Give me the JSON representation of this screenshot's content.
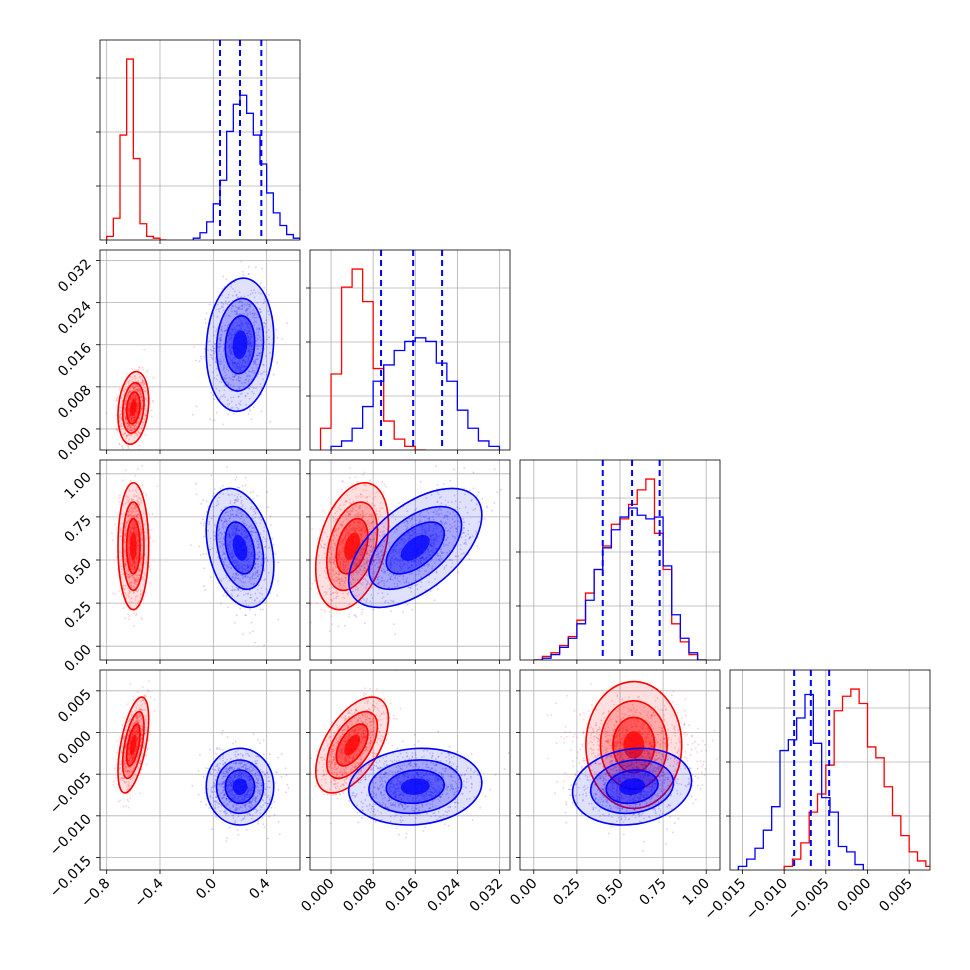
{
  "chart_data": {
    "type": "corner",
    "title": "",
    "parameters": [
      {
        "range": [
          -0.85,
          0.65
        ],
        "ticks": [
          -0.8,
          -0.4,
          0.0,
          0.4
        ],
        "tick_labels": [
          "−0.8",
          "−0.4",
          "0.0",
          "0.4"
        ],
        "label": ""
      },
      {
        "range": [
          -0.004,
          0.034
        ],
        "ticks": [
          0.0,
          0.008,
          0.016,
          0.024,
          0.032
        ],
        "tick_labels": [
          "0.000",
          "0.008",
          "0.016",
          "0.024",
          "0.032"
        ],
        "label": ""
      },
      {
        "range": [
          -0.08,
          1.08
        ],
        "ticks": [
          0.0,
          0.25,
          0.5,
          0.75,
          1.0
        ],
        "tick_labels": [
          "0.00",
          "0.25",
          "0.50",
          "0.75",
          "1.00"
        ],
        "label": ""
      },
      {
        "range": [
          -0.0165,
          0.0075
        ],
        "ticks": [
          -0.015,
          -0.01,
          -0.005,
          0.0,
          0.005
        ],
        "tick_labels": [
          "−0.015",
          "−0.010",
          "−0.005",
          "0.000",
          "0.005"
        ],
        "label": ""
      }
    ],
    "grid": true,
    "series": [
      {
        "color": "#ff0000",
        "means": [
          -0.6,
          0.004,
          0.58,
          -0.0015
        ],
        "sigmas": [
          0.05,
          0.003,
          0.16,
          0.0025
        ],
        "correlations": [
          [
            0,
            1,
            0.2
          ],
          [
            0,
            2,
            0.0
          ],
          [
            0,
            3,
            0.55
          ],
          [
            1,
            2,
            0.35
          ],
          [
            1,
            3,
            0.55
          ],
          [
            2,
            3,
            0.0
          ]
        ],
        "histograms": [
          {
            "edges": [
              -0.8,
              -0.75,
              -0.7,
              -0.65,
              -0.6,
              -0.55,
              -0.5,
              -0.45,
              -0.4,
              -0.35
            ],
            "counts": [
              0.02,
              0.12,
              0.58,
              1.0,
              0.45,
              0.09,
              0.02,
              0.01,
              0.0
            ]
          },
          {
            "edges": [
              -0.002,
              0.0,
              0.002,
              0.004,
              0.006,
              0.008,
              0.01,
              0.012,
              0.014,
              0.016,
              0.018
            ],
            "counts": [
              0.12,
              0.42,
              0.9,
              1.0,
              0.82,
              0.45,
              0.16,
              0.06,
              0.02,
              0.0
            ]
          },
          {
            "edges": [
              0.0,
              0.05,
              0.1,
              0.15,
              0.2,
              0.25,
              0.3,
              0.35,
              0.4,
              0.45,
              0.5,
              0.55,
              0.6,
              0.65,
              0.7,
              0.75,
              0.8,
              0.85,
              0.9,
              0.95,
              1.0
            ],
            "counts": [
              0.0,
              0.02,
              0.04,
              0.08,
              0.13,
              0.22,
              0.37,
              0.5,
              0.63,
              0.75,
              0.78,
              0.86,
              0.94,
              1.0,
              0.7,
              0.5,
              0.2,
              0.1,
              0.03,
              0.0
            ]
          },
          {
            "edges": [
              -0.01,
              -0.009,
              -0.008,
              -0.007,
              -0.006,
              -0.005,
              -0.004,
              -0.003,
              -0.002,
              -0.001,
              0.0,
              0.001,
              0.002,
              0.003,
              0.004,
              0.005,
              0.006,
              0.007,
              0.008
            ],
            "counts": [
              0.02,
              0.06,
              0.15,
              0.32,
              0.42,
              0.58,
              0.88,
              0.96,
              1.0,
              0.92,
              0.68,
              0.62,
              0.46,
              0.3,
              0.19,
              0.1,
              0.05,
              0.02
            ]
          }
        ]
      },
      {
        "color": "#0000ff",
        "means": [
          0.2,
          0.016,
          0.57,
          -0.0065
        ],
        "sigmas": [
          0.11,
          0.0055,
          0.15,
          0.002
        ],
        "correlations": [
          [
            0,
            1,
            0.1
          ],
          [
            0,
            2,
            -0.3
          ],
          [
            0,
            3,
            0.0
          ],
          [
            1,
            2,
            0.55
          ],
          [
            1,
            3,
            0.1
          ],
          [
            2,
            3,
            0.15
          ]
        ],
        "quantiles": [
          [
            0.05,
            0.2,
            0.36
          ],
          [
            0.0095,
            0.0156,
            0.0211
          ],
          [
            0.4,
            0.57,
            0.73
          ],
          [
            -0.0088,
            -0.0068,
            -0.0046
          ]
        ],
        "histograms": [
          {
            "edges": [
              -0.15,
              -0.1,
              -0.05,
              0.0,
              0.05,
              0.1,
              0.15,
              0.2,
              0.25,
              0.3,
              0.35,
              0.4,
              0.45,
              0.5,
              0.55,
              0.6,
              0.65
            ],
            "counts": [
              0.01,
              0.04,
              0.1,
              0.2,
              0.33,
              0.6,
              0.75,
              0.8,
              0.7,
              0.58,
              0.42,
              0.26,
              0.15,
              0.08,
              0.03,
              0.01
            ]
          },
          {
            "edges": [
              0.0,
              0.002,
              0.004,
              0.006,
              0.008,
              0.01,
              0.012,
              0.014,
              0.016,
              0.018,
              0.02,
              0.022,
              0.024,
              0.026,
              0.028,
              0.03,
              0.032
            ],
            "counts": [
              0.02,
              0.05,
              0.12,
              0.24,
              0.38,
              0.47,
              0.55,
              0.6,
              0.62,
              0.6,
              0.48,
              0.38,
              0.22,
              0.12,
              0.05,
              0.02
            ]
          },
          {
            "edges": [
              0.0,
              0.05,
              0.1,
              0.15,
              0.2,
              0.25,
              0.3,
              0.35,
              0.4,
              0.45,
              0.5,
              0.55,
              0.6,
              0.65,
              0.7,
              0.75,
              0.8,
              0.85,
              0.9,
              0.95,
              1.0
            ],
            "counts": [
              0.0,
              0.01,
              0.03,
              0.07,
              0.12,
              0.2,
              0.33,
              0.5,
              0.62,
              0.72,
              0.79,
              0.84,
              0.8,
              0.78,
              0.79,
              0.52,
              0.25,
              0.12,
              0.04,
              0.0
            ]
          },
          {
            "edges": [
              -0.0155,
              -0.0145,
              -0.0135,
              -0.0125,
              -0.0115,
              -0.0105,
              -0.0095,
              -0.0085,
              -0.0075,
              -0.0065,
              -0.0055,
              -0.0045,
              -0.0035,
              -0.0025,
              -0.0015,
              -0.0005
            ],
            "counts": [
              0.02,
              0.06,
              0.12,
              0.22,
              0.35,
              0.66,
              0.72,
              0.84,
              0.97,
              0.7,
              0.4,
              0.32,
              0.13,
              0.1,
              0.03
            ]
          }
        ]
      }
    ]
  }
}
